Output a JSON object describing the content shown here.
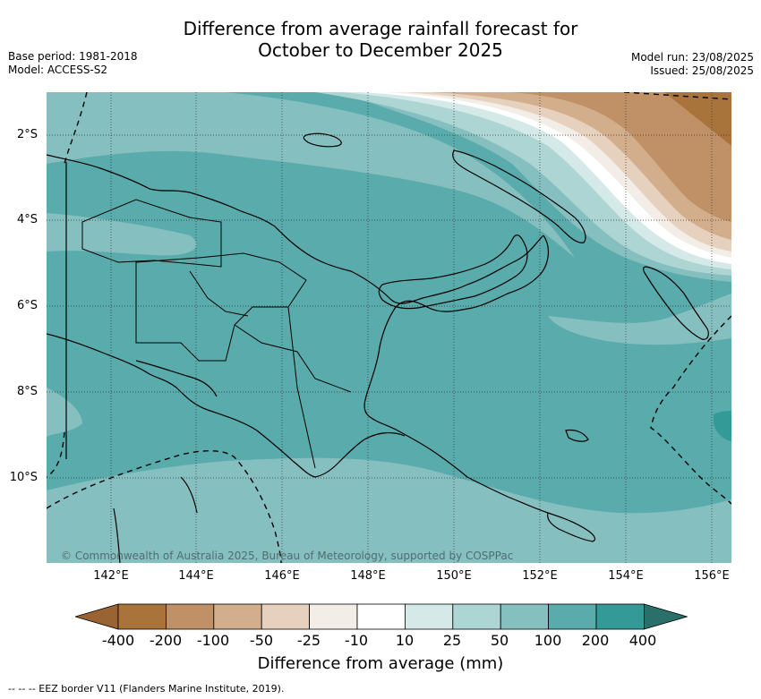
{
  "title_line1": "Difference from average rainfall forecast for",
  "title_line2": "October to December 2025",
  "meta_left": {
    "base_period": "Base period: 1981-2018",
    "model": "Model: ACCESS-S2"
  },
  "meta_right": {
    "model_run": "Model run: 23/08/2025",
    "issued": "Issued: 25/08/2025"
  },
  "lat_labels": [
    "2°S",
    "4°S",
    "6°S",
    "8°S",
    "10°S"
  ],
  "lon_labels": [
    "142°E",
    "144°E",
    "146°E",
    "148°E",
    "150°E",
    "152°E",
    "154°E",
    "156°E"
  ],
  "copyright": "© Commonwealth of Australia 2025, Bureau of Meteorology, supported by COSPPac",
  "colorbar": {
    "labels": [
      "-400",
      "-200",
      "-100",
      "-50",
      "-25",
      "-10",
      "10",
      "25",
      "50",
      "100",
      "200",
      "400"
    ],
    "colors": [
      "#9a6334",
      "#a9733c",
      "#c09066",
      "#d3ae8c",
      "#e6d0be",
      "#f3ede8",
      "#ffffff",
      "#d5eae8",
      "#acd5d4",
      "#86bfbf",
      "#5aabab",
      "#339a97",
      "#2b6f6a"
    ],
    "title": "Difference from average (mm)"
  },
  "footnote": "--  --  -- EEZ border V11 (Flanders Marine Institute, 2019)."
}
